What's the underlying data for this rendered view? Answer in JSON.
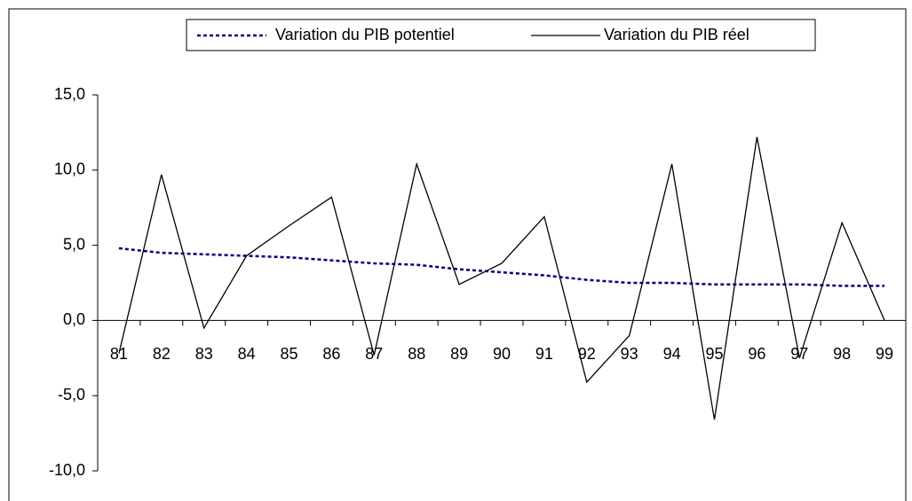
{
  "chart_data": {
    "type": "line",
    "categories": [
      "81",
      "82",
      "83",
      "84",
      "85",
      "86",
      "87",
      "88",
      "89",
      "90",
      "91",
      "92",
      "93",
      "94",
      "95",
      "96",
      "97",
      "98",
      "99"
    ],
    "series": [
      {
        "name": "Variation du PIB potentiel",
        "color": "#000080",
        "dash": true,
        "values": [
          4.8,
          4.5,
          4.4,
          4.3,
          4.2,
          4.0,
          3.8,
          3.7,
          3.4,
          3.2,
          3.0,
          2.7,
          2.5,
          2.5,
          2.4,
          2.4,
          2.4,
          2.3,
          2.3
        ]
      },
      {
        "name": "Variation du PIB réel",
        "color": "#000000",
        "dash": false,
        "values": [
          -2.2,
          9.7,
          -0.5,
          4.3,
          6.3,
          8.2,
          -2.3,
          10.4,
          2.4,
          3.8,
          6.9,
          -4.1,
          -1.0,
          10.4,
          -6.6,
          12.2,
          -2.5,
          6.5,
          0.0
        ]
      }
    ],
    "ylim": [
      -10,
      15
    ],
    "yticks": [
      {
        "value": -10,
        "label": "-10,0"
      },
      {
        "value": -5,
        "label": "-5,0"
      },
      {
        "value": 0,
        "label": "0,0"
      },
      {
        "value": 5,
        "label": "5,0"
      },
      {
        "value": 10,
        "label": "10,0"
      },
      {
        "value": 15,
        "label": "15,0"
      }
    ],
    "legend": "top"
  }
}
